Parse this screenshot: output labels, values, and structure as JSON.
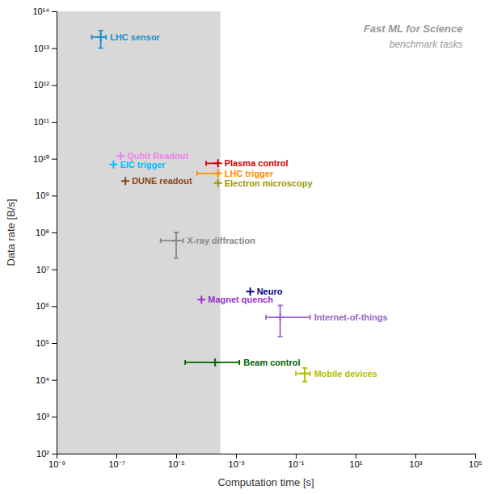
{
  "chart_data": {
    "type": "scatter",
    "title": "Fast ML for Science",
    "subtitle": "benchmark tasks",
    "x_label": "Computation time [s]",
    "y_label": "Data rate [B/s]",
    "log": true,
    "grid": false,
    "marker": "plus",
    "xlim": [
      1e-09,
      100000
    ],
    "ylim": [
      100,
      100000000000000.0
    ],
    "xticks": [
      {
        "value": 1e-09,
        "label": "10⁻⁹"
      },
      {
        "value": 1e-07,
        "label": "10⁻⁷"
      },
      {
        "value": 1e-05,
        "label": "10⁻⁵"
      },
      {
        "value": 0.001,
        "label": "10⁻³"
      },
      {
        "value": 0.1,
        "label": "10⁻¹"
      },
      {
        "value": 10,
        "label": "10¹"
      },
      {
        "value": 1000,
        "label": "10³"
      },
      {
        "value": 100000,
        "label": "10⁵"
      }
    ],
    "yticks": [
      {
        "value": 100,
        "label": "10²"
      },
      {
        "value": 1000,
        "label": "10³"
      },
      {
        "value": 10000,
        "label": "10⁴"
      },
      {
        "value": 100000,
        "label": "10⁵"
      },
      {
        "value": 1000000,
        "label": "10⁶"
      },
      {
        "value": 10000000.0,
        "label": "10⁷"
      },
      {
        "value": 100000000.0,
        "label": "10⁸"
      },
      {
        "value": 1000000000.0,
        "label": "10⁹"
      },
      {
        "value": 10000000000.0,
        "label": "10¹⁰"
      },
      {
        "value": 100000000000.0,
        "label": "10¹¹"
      },
      {
        "value": 1000000000000.0,
        "label": "10¹²"
      },
      {
        "value": 10000000000000.0,
        "label": "10¹³"
      },
      {
        "value": 100000000000000.0,
        "label": "10¹⁴"
      }
    ],
    "shaded_span": {
      "x": [
        1e-09,
        0.0003
      ],
      "color": "#d8d8d8"
    },
    "series": [
      {
        "name": "LHC sensor",
        "color": "#1a8fce",
        "x": [
          3e-08
        ],
        "values": [
          20000000000000.0
        ],
        "x_err_low": [
          1.5e-08
        ],
        "x_err_high": [
          1.5e-08
        ],
        "y_err_low": [
          10000000000000.0
        ],
        "y_err_high": [
          10000000000000.0
        ]
      },
      {
        "name": "Qubit Readout",
        "color": "#ee82ee",
        "x": [
          1.4e-07
        ],
        "values": [
          12000000000.0
        ],
        "x_err_low": [
          0
        ],
        "x_err_high": [
          0
        ],
        "y_err_low": [
          0
        ],
        "y_err_high": [
          0
        ]
      },
      {
        "name": "EIC trigger",
        "color": "#00bfff",
        "x": [
          8e-08
        ],
        "values": [
          7000000000.0
        ],
        "x_err_low": [
          0
        ],
        "x_err_high": [
          0
        ],
        "y_err_low": [
          0
        ],
        "y_err_high": [
          0
        ]
      },
      {
        "name": "Plasma control",
        "color": "#cc0000",
        "x": [
          0.00025
        ],
        "values": [
          7500000000.0
        ],
        "x_err_low": [
          0.00015
        ],
        "x_err_high": [
          0
        ],
        "y_err_low": [
          0
        ],
        "y_err_high": [
          0
        ]
      },
      {
        "name": "LHC trigger",
        "color": "#ff8c00",
        "x": [
          0.00025
        ],
        "values": [
          4000000000.0
        ],
        "x_err_low": [
          0.0002
        ],
        "x_err_high": [
          0
        ],
        "y_err_low": [
          0
        ],
        "y_err_high": [
          0
        ]
      },
      {
        "name": "DUNE readout",
        "color": "#8b4513",
        "x": [
          2e-07
        ],
        "values": [
          2500000000.0
        ],
        "x_err_low": [
          0
        ],
        "x_err_high": [
          0
        ],
        "y_err_low": [
          0
        ],
        "y_err_high": [
          0
        ]
      },
      {
        "name": "Electron microscopy",
        "color": "#999900",
        "x": [
          0.00025
        ],
        "values": [
          2200000000.0
        ],
        "x_err_low": [
          0
        ],
        "x_err_high": [
          0
        ],
        "y_err_low": [
          0
        ],
        "y_err_high": [
          0
        ]
      },
      {
        "name": "X-ray diffraction",
        "color": "#888888",
        "x": [
          1e-05
        ],
        "values": [
          60000000.0
        ],
        "x_err_low": [
          7e-06
        ],
        "x_err_high": [
          7e-06
        ],
        "y_err_low": [
          40000000.0
        ],
        "y_err_high": [
          40000000.0
        ]
      },
      {
        "name": "Neuro",
        "color": "#00008b",
        "x": [
          0.003
        ],
        "values": [
          2500000.0
        ],
        "x_err_low": [
          0
        ],
        "x_err_high": [
          0
        ],
        "y_err_low": [
          0
        ],
        "y_err_high": [
          0
        ]
      },
      {
        "name": "Magnet quench",
        "color": "#9932cc",
        "x": [
          7e-05
        ],
        "values": [
          1500000.0
        ],
        "x_err_low": [
          0
        ],
        "x_err_high": [
          0
        ],
        "y_err_low": [
          0
        ],
        "y_err_high": [
          0
        ]
      },
      {
        "name": "Internet-of-things",
        "color": "#9966cc",
        "x": [
          0.03
        ],
        "values": [
          500000.0
        ],
        "x_err_low": [
          0.02
        ],
        "x_err_high": [
          0.27
        ],
        "y_err_low": [
          350000.0
        ],
        "y_err_high": [
          550000.0
        ]
      },
      {
        "name": "Beam control",
        "color": "#006400",
        "x": [
          0.0002
        ],
        "values": [
          30000.0
        ],
        "x_err_low": [
          0.00018
        ],
        "x_err_high": [
          0.0011
        ],
        "y_err_low": [
          0
        ],
        "y_err_high": [
          0
        ]
      },
      {
        "name": "Mobile devices",
        "color": "#b5bd00",
        "x": [
          0.2
        ],
        "values": [
          15000.0
        ],
        "x_err_low": [
          0.1
        ],
        "x_err_high": [
          0.1
        ],
        "y_err_low": [
          6000.0
        ],
        "y_err_high": [
          6000.0
        ]
      }
    ]
  }
}
